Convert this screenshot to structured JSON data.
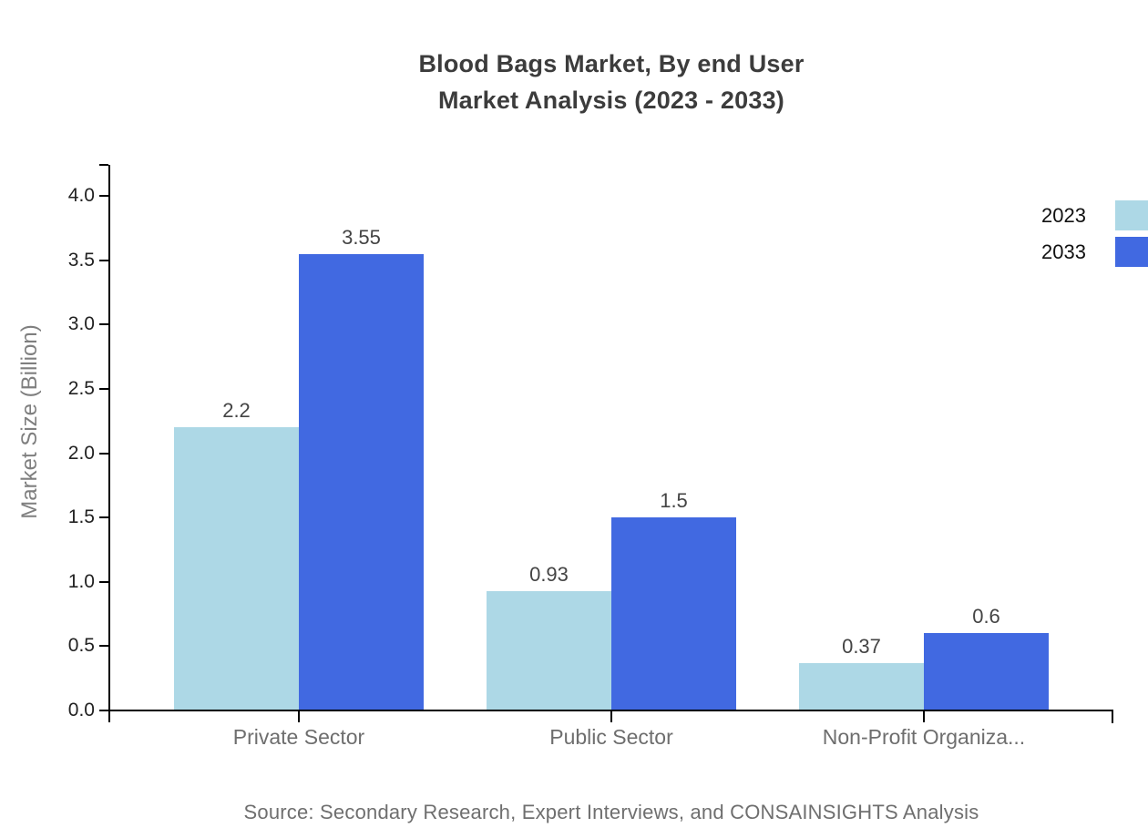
{
  "chart": {
    "title_line1": "Blood Bags Market, By end User",
    "title_line2": "Market Analysis (2023 - 2033)",
    "ylabel": "Market Size (Billion)",
    "source": "Source: Secondary Research, Expert Interviews, and CONSAINSIGHTS Analysis"
  },
  "chart_data": {
    "type": "bar",
    "title": "Blood Bags Market, By end User Market Analysis (2023 - 2033)",
    "categories": [
      "Private Sector",
      "Public Sector",
      "Non-Profit Organiza..."
    ],
    "series": [
      {
        "name": "2023",
        "color": "#ADD8E6",
        "values": [
          2.2,
          0.93,
          0.37
        ]
      },
      {
        "name": "2033",
        "color": "#4169E1",
        "values": [
          3.55,
          1.5,
          0.6
        ]
      }
    ],
    "value_labels": [
      [
        "2.2",
        "0.93",
        "0.37"
      ],
      [
        "3.55",
        "1.5",
        "0.6"
      ]
    ],
    "xlabel": "",
    "ylabel": "Market Size (Billion)",
    "ylim": [
      0,
      4.3
    ],
    "y_ticks": [
      0.0,
      0.5,
      1.0,
      1.5,
      2.0,
      2.5,
      3.0,
      3.5,
      4.0
    ],
    "grid": false,
    "legend_position": "top-right",
    "axis_color": "#000000",
    "source": "Source: Secondary Research, Expert Interviews, and CONSAINSIGHTS Analysis"
  }
}
